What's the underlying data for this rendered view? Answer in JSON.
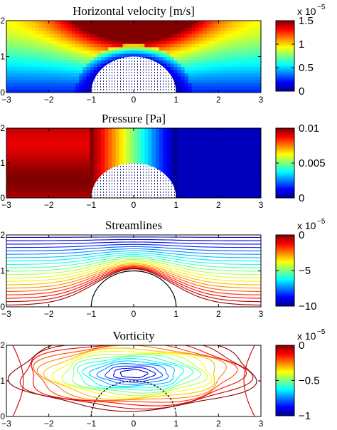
{
  "chart_data": [
    {
      "type": "heatmap",
      "title": "Horizontal velocity [m/s]",
      "xlim": [
        -3,
        3
      ],
      "ylim": [
        0,
        2
      ],
      "xticks": [
        "−3",
        "−2",
        "−1",
        "0",
        "1",
        "2",
        "3"
      ],
      "yticks": [
        "0",
        "1",
        "2"
      ],
      "colorbar": {
        "ticks": [
          "0",
          "0.5",
          "1",
          "1.5"
        ],
        "values": [
          0,
          0.5,
          1,
          1.5
        ],
        "clim": [
          0,
          1.5
        ],
        "exponent_base": "x 10",
        "exponent_power": "−5"
      },
      "obstacle": {
        "shape": "semicircle",
        "center": [
          0,
          0
        ],
        "radius": 1
      },
      "field": "max near top center (y≈2, x≈0) about 1.5e-5, decreasing toward bottom and sides; ~0 near obstacle and bed"
    },
    {
      "type": "heatmap",
      "title": "Pressure [Pa]",
      "xlim": [
        -3,
        3
      ],
      "ylim": [
        0,
        2
      ],
      "xticks": [
        "−3",
        "−2",
        "−1",
        "0",
        "1",
        "2",
        "3"
      ],
      "yticks": [
        "0",
        "1",
        "2"
      ],
      "colorbar": {
        "ticks": [
          "0",
          "0.005",
          "0.01"
        ],
        "values": [
          0,
          0.005,
          0.01
        ],
        "clim": [
          0,
          0.01
        ]
      },
      "obstacle": {
        "shape": "semicircle",
        "center": [
          0,
          0
        ],
        "radius": 1
      },
      "field": "high (~0.01) for x < -1, dropping across obstacle to ~0 for x > 1"
    },
    {
      "type": "contour",
      "title": "Streamlines",
      "xlim": [
        -3,
        3
      ],
      "ylim": [
        0,
        2
      ],
      "xticks": [
        "−3",
        "−2",
        "−1",
        "0",
        "1",
        "2",
        "3"
      ],
      "yticks": [
        "0",
        "1",
        "2"
      ],
      "colorbar": {
        "ticks": [
          "0",
          "−5",
          "−10"
        ],
        "values": [
          0,
          -5,
          -10
        ],
        "clim": [
          -10,
          0
        ],
        "exponent_base": "x 10",
        "exponent_power": "−5"
      },
      "obstacle": {
        "shape": "semicircle",
        "center": [
          0,
          0
        ],
        "radius": 1
      },
      "levels": 21
    },
    {
      "type": "contour",
      "title": "Vorticity",
      "xlim": [
        -3,
        3
      ],
      "ylim": [
        0,
        2
      ],
      "xticks": [
        "−3",
        "−2",
        "−1",
        "0",
        "1",
        "2",
        "3"
      ],
      "yticks": [
        "0",
        "1",
        "2"
      ],
      "colorbar": {
        "ticks": [
          "0",
          "−0.5",
          "−1"
        ],
        "values": [
          0,
          -0.5,
          -1
        ],
        "clim": [
          -1,
          0
        ],
        "exponent_base": "x 10",
        "exponent_power": "−5"
      },
      "obstacle": {
        "shape": "semicircle",
        "center": [
          0,
          0
        ],
        "radius": 1
      },
      "field": "minimum (~-1e-5) in elongated core near (0, 1.2), rising to 0 toward edges"
    }
  ]
}
